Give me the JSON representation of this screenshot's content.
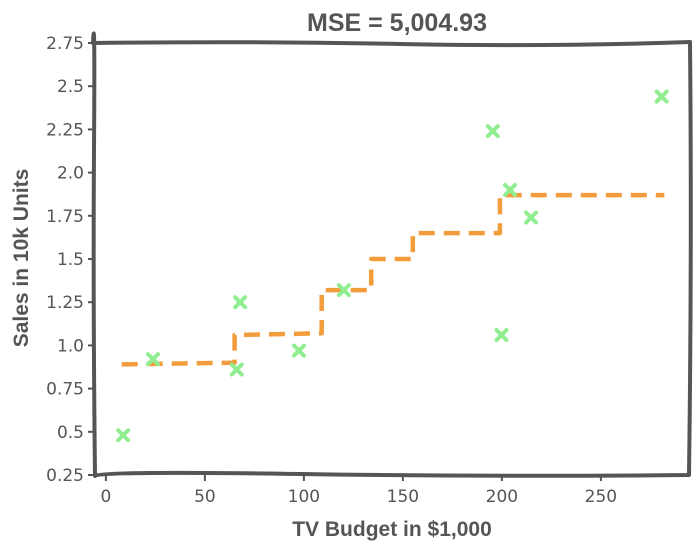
{
  "chart_data": {
    "type": "scatter",
    "title": "MSE = 5,004.93",
    "xlabel": "TV Budget in $1,000",
    "ylabel": "Sales in 10k Units",
    "xlim": [
      -6,
      295
    ],
    "ylim": [
      0.25,
      2.75
    ],
    "x_ticks": [
      0,
      50,
      100,
      150,
      200,
      250
    ],
    "x_tick_labels": [
      "0",
      "50",
      "100",
      "150",
      "200",
      "250"
    ],
    "y_ticks": [
      0.25,
      0.5,
      0.75,
      1.0,
      1.25,
      1.5,
      1.75,
      2.0,
      2.25,
      2.5,
      2.75
    ],
    "y_tick_labels": [
      "0.25",
      "0.5",
      "0.75",
      "1.0",
      "1.25",
      "1.5",
      "1.75",
      "2.0",
      "2.25",
      "2.5",
      "2.75"
    ],
    "grid": false,
    "series": [
      {
        "kind": "scatter",
        "marker": "x",
        "color": "#90ee90",
        "points": [
          [
            8.7,
            0.48
          ],
          [
            23.8,
            0.92
          ],
          [
            66.1,
            0.86
          ],
          [
            67.8,
            1.25
          ],
          [
            97.5,
            0.97
          ],
          [
            120.2,
            1.32
          ],
          [
            195.4,
            2.24
          ],
          [
            199.8,
            1.06
          ],
          [
            204.1,
            1.9
          ],
          [
            214.7,
            1.74
          ],
          [
            280.7,
            2.44
          ]
        ]
      },
      {
        "kind": "line",
        "style": "dashed",
        "color": "#f39c3c",
        "points": [
          [
            8,
            0.89
          ],
          [
            65,
            0.9
          ],
          [
            65,
            1.06
          ],
          [
            109,
            1.07
          ],
          [
            109,
            1.32
          ],
          [
            134,
            1.32
          ],
          [
            134,
            1.5
          ],
          [
            155,
            1.5
          ],
          [
            155,
            1.65
          ],
          [
            199,
            1.65
          ],
          [
            199,
            1.87
          ],
          [
            282,
            1.87
          ]
        ]
      }
    ]
  }
}
